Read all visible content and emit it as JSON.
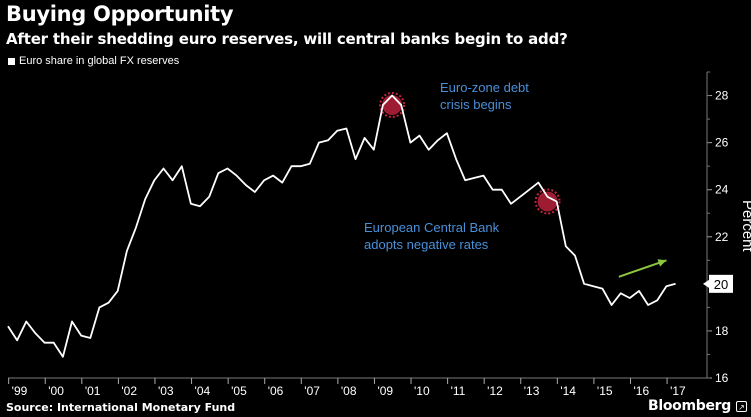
{
  "header": {
    "title": "Buying Opportunity",
    "subtitle": "After their shedding euro reserves, will central banks begin to add?"
  },
  "legend": {
    "label": "Euro share in global FX reserves"
  },
  "footer": {
    "source": "Source: International Monetary Fund",
    "brand": "Bloomberg"
  },
  "chart_data": {
    "type": "line",
    "title": "Buying Opportunity",
    "subtitle": "After their shedding euro reserves, will central banks begin to add?",
    "ylabel": "Percent",
    "xlabel": "",
    "ylim": [
      16,
      29
    ],
    "yticks": [
      "16",
      "18",
      "20",
      "22",
      "24",
      "26",
      "28"
    ],
    "xlim": [
      1999.0,
      2018.0
    ],
    "xticks": [
      {
        "label": "'99",
        "x": 1999.1
      },
      {
        "label": "'00",
        "x": 2000.1
      },
      {
        "label": "'01",
        "x": 2001.1
      },
      {
        "label": "'02",
        "x": 2002.1
      },
      {
        "label": "'03",
        "x": 2003.1
      },
      {
        "label": "'04",
        "x": 2004.1
      },
      {
        "label": "'05",
        "x": 2005.1
      },
      {
        "label": "'06",
        "x": 2006.1
      },
      {
        "label": "'07",
        "x": 2007.1
      },
      {
        "label": "'08",
        "x": 2008.1
      },
      {
        "label": "'09",
        "x": 2009.1
      },
      {
        "label": "'10",
        "x": 2010.1
      },
      {
        "label": "'11",
        "x": 2011.1
      },
      {
        "label": "'12",
        "x": 2012.1
      },
      {
        "label": "'13",
        "x": 2013.1
      },
      {
        "label": "'14",
        "x": 2014.1
      },
      {
        "label": "'15",
        "x": 2015.1
      },
      {
        "label": "'16",
        "x": 2016.1
      },
      {
        "label": "'17",
        "x": 2017.1
      }
    ],
    "grid": false,
    "legend_position": "top-left",
    "last_value_label": "20",
    "series": [
      {
        "name": "Euro share in global FX reserves",
        "color": "#ffffff",
        "x": [
          1999.0,
          1999.25,
          1999.5,
          1999.75,
          2000.0,
          2000.25,
          2000.5,
          2000.75,
          2001.0,
          2001.25,
          2001.5,
          2001.75,
          2002.0,
          2002.25,
          2002.5,
          2002.75,
          2003.0,
          2003.25,
          2003.5,
          2003.75,
          2004.0,
          2004.25,
          2004.5,
          2004.75,
          2005.0,
          2005.25,
          2005.5,
          2005.75,
          2006.0,
          2006.25,
          2006.5,
          2006.75,
          2007.0,
          2007.25,
          2007.5,
          2007.75,
          2008.0,
          2008.25,
          2008.5,
          2008.75,
          2009.0,
          2009.25,
          2009.5,
          2009.75,
          2010.0,
          2010.25,
          2010.5,
          2010.75,
          2011.0,
          2011.25,
          2011.5,
          2011.75,
          2012.0,
          2012.25,
          2012.5,
          2012.75,
          2013.0,
          2013.25,
          2013.5,
          2013.75,
          2014.0,
          2014.25,
          2014.5,
          2014.75,
          2015.0,
          2015.25,
          2015.5,
          2015.75,
          2016.0,
          2016.25,
          2016.5,
          2016.75,
          2017.0,
          2017.25
        ],
        "y": [
          18.2,
          17.6,
          18.4,
          17.9,
          17.5,
          17.5,
          16.9,
          18.4,
          17.8,
          17.7,
          19.0,
          19.2,
          19.7,
          21.4,
          22.4,
          23.6,
          24.4,
          24.9,
          24.4,
          25.0,
          23.4,
          23.3,
          23.7,
          24.7,
          24.9,
          24.6,
          24.2,
          23.9,
          24.4,
          24.6,
          24.3,
          25.0,
          25.0,
          25.1,
          26.0,
          26.1,
          26.5,
          26.6,
          25.3,
          26.2,
          25.7,
          27.6,
          28.0,
          27.6,
          26.0,
          26.3,
          25.7,
          26.1,
          26.4,
          25.3,
          24.4,
          24.5,
          24.6,
          24.0,
          24.0,
          23.4,
          23.7,
          24.0,
          24.3,
          23.7,
          23.5,
          21.6,
          21.2,
          20.0,
          19.9,
          19.8,
          19.1,
          19.6,
          19.4,
          19.7,
          19.1,
          19.3,
          19.9,
          20.0
        ]
      }
    ],
    "annotations": [
      {
        "text_lines": [
          "Euro-zone debt",
          "crisis begins"
        ],
        "x": 2009.5,
        "y": 27.6,
        "marker": "red-circle"
      },
      {
        "text_lines": [
          "European Central Bank",
          "adopts negative rates"
        ],
        "x": 2013.75,
        "y": 23.5,
        "marker": "red-circle"
      }
    ],
    "arrow": {
      "color": "#8dc63f",
      "from": [
        2015.7,
        20.3
      ],
      "to": [
        2017.0,
        21.0
      ]
    }
  }
}
